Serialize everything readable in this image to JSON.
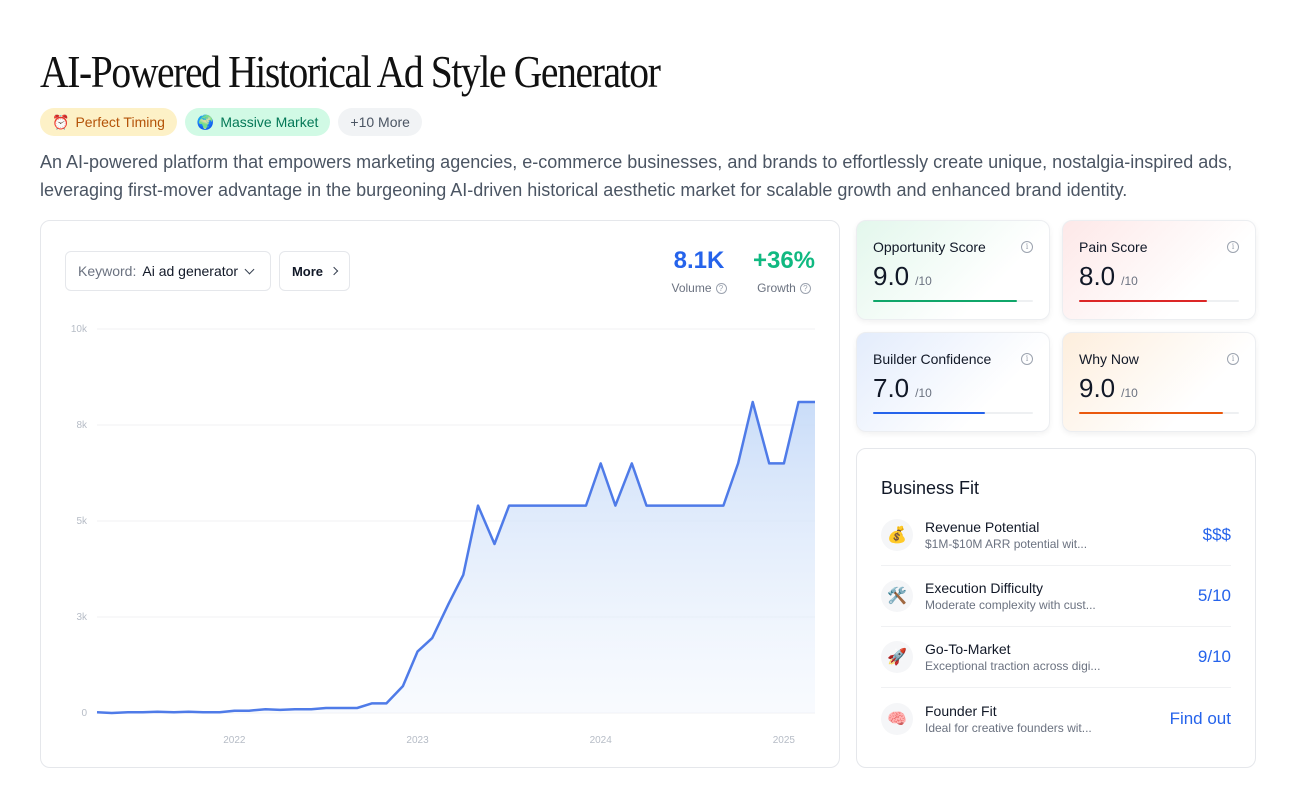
{
  "page": {
    "title": "AI-Powered Historical Ad Style Generator",
    "description": "An AI-powered platform that empowers marketing agencies, e-commerce businesses, and brands to effortlessly create unique, nostalgia-inspired ads, leveraging first-mover advantage in the burgeoning AI-driven historical aesthetic market for scalable growth and enhanced brand identity."
  },
  "tags": [
    {
      "emoji": "⏰",
      "label": "Perfect Timing",
      "color": "#b45309"
    },
    {
      "emoji": "🌍",
      "label": "Massive Market",
      "color": "#047857"
    },
    {
      "label": "+10 More"
    }
  ],
  "trend": {
    "keyword_label": "Keyword:",
    "keyword_value": "Ai ad generator",
    "more_label": "More",
    "volume": {
      "value": "8.1K",
      "label": "Volume"
    },
    "growth": {
      "value": "+36%",
      "label": "Growth"
    }
  },
  "chart_data": {
    "type": "area",
    "y_tick_labels": [
      "0",
      "3k",
      "5k",
      "8k",
      "10k"
    ],
    "y_ticks": [
      0,
      2500,
      5000,
      7500,
      10000
    ],
    "ylim": [
      0,
      10000
    ],
    "x_tick_labels": [
      "2022",
      "2023",
      "2024",
      "2025"
    ],
    "x_ticks": [
      2022.0,
      2023.0,
      2024.0,
      2025.0
    ],
    "xlim": [
      2021.25,
      2025.17
    ],
    "grid": true,
    "color": "#4f7be8",
    "series": [
      {
        "x": [
          2021.25,
          2021.33,
          2021.42,
          2021.5,
          2021.58,
          2021.67,
          2021.75,
          2021.83,
          2021.92,
          2022.0,
          2022.08,
          2022.17,
          2022.25,
          2022.33,
          2022.42,
          2022.5,
          2022.58,
          2022.67,
          2022.75,
          2022.83,
          2022.92,
          2023.0,
          2023.08,
          2023.17,
          2023.25,
          2023.33,
          2023.42,
          2023.5,
          2023.58,
          2023.67,
          2023.75,
          2023.83,
          2023.92,
          2024.0,
          2024.08,
          2024.17,
          2024.25,
          2024.33,
          2024.42,
          2024.5,
          2024.58,
          2024.67,
          2024.75,
          2024.83,
          2024.92,
          2025.0,
          2025.08,
          2025.17
        ],
        "y": [
          20,
          0,
          20,
          20,
          30,
          20,
          30,
          20,
          20,
          60,
          60,
          100,
          80,
          100,
          100,
          130,
          130,
          130,
          250,
          250,
          700,
          1600,
          1950,
          2850,
          3600,
          5400,
          4400,
          5400,
          5400,
          5400,
          5400,
          5400,
          5400,
          6500,
          5400,
          6500,
          5400,
          5400,
          5400,
          5400,
          5400,
          5400,
          6500,
          8100,
          6500,
          6500,
          8100,
          8100
        ]
      }
    ]
  },
  "scores": [
    {
      "label": "Opportunity Score",
      "value": "9.0",
      "out_of": "/10",
      "fill": 0.9,
      "color": "#10a66a"
    },
    {
      "label": "Pain Score",
      "value": "8.0",
      "out_of": "/10",
      "fill": 0.8,
      "color": "#dc2626"
    },
    {
      "label": "Builder Confidence",
      "value": "7.0",
      "out_of": "/10",
      "fill": 0.7,
      "color": "#2563eb"
    },
    {
      "label": "Why Now",
      "value": "9.0",
      "out_of": "/10",
      "fill": 0.9,
      "color": "#ea580c"
    }
  ],
  "business_fit": {
    "title": "Business Fit",
    "items": [
      {
        "icon": "💰",
        "name": "Revenue Potential",
        "sub": "$1M-$10M ARR potential wit...",
        "value": "$$$"
      },
      {
        "icon": "🛠️",
        "name": "Execution Difficulty",
        "sub": "Moderate complexity with cust...",
        "value": "5/10"
      },
      {
        "icon": "🚀",
        "name": "Go-To-Market",
        "sub": "Exceptional traction across digi...",
        "value": "9/10"
      },
      {
        "icon": "🧠",
        "name": "Founder Fit",
        "sub": "Ideal for creative founders wit...",
        "value": "Find out"
      }
    ]
  }
}
